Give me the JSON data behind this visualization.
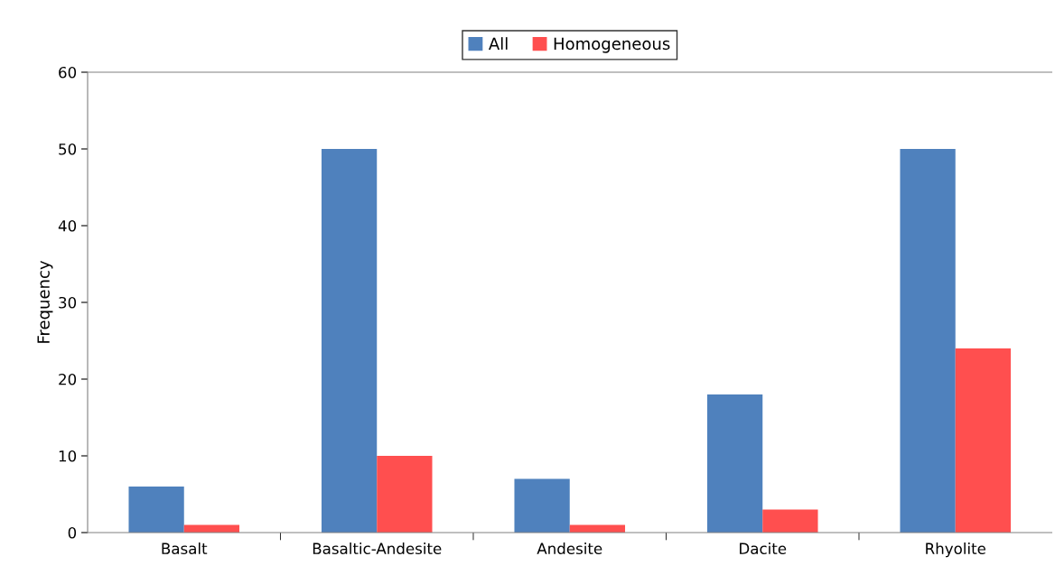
{
  "chart_data": {
    "type": "bar",
    "ylabel": "Frequency",
    "categories": [
      "Basalt",
      "Basaltic-Andesite",
      "Andesite",
      "Dacite",
      "Rhyolite"
    ],
    "series": [
      {
        "name": "All",
        "color": "#4f81bd",
        "values": [
          6,
          50,
          7,
          18,
          50
        ]
      },
      {
        "name": "Homogeneous",
        "color": "#ff4f4f",
        "values": [
          1,
          10,
          1,
          3,
          24
        ]
      }
    ],
    "ylim": [
      0,
      60
    ],
    "yticks": [
      0,
      10,
      20,
      30,
      40,
      50,
      60
    ],
    "grid": false,
    "legend": "top"
  }
}
